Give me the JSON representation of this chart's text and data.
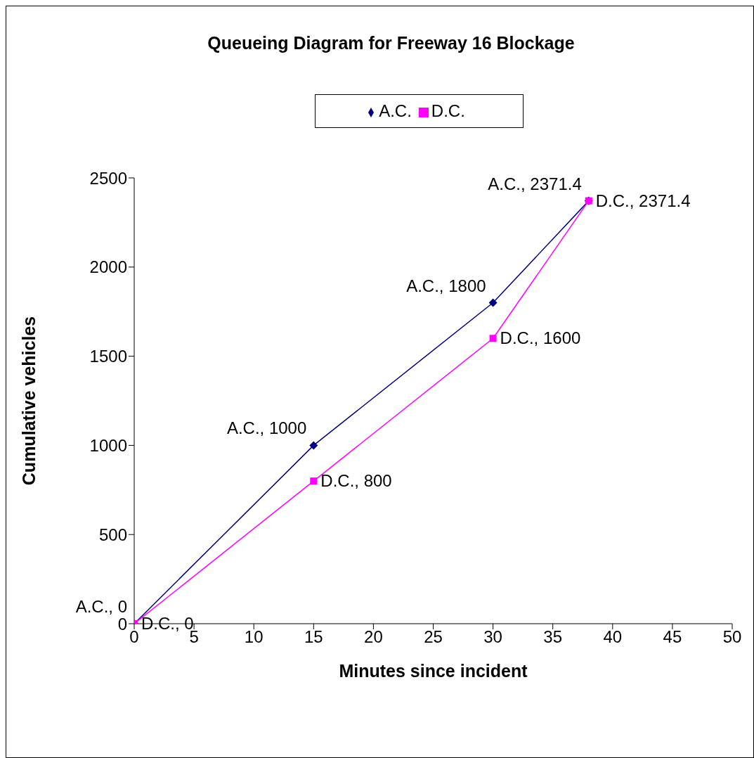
{
  "chart_data": {
    "type": "line",
    "title": "Queueing Diagram for Freeway 16 Blockage",
    "xlabel": "Minutes since incident",
    "ylabel": "Cumulative vehicles",
    "x": [
      0,
      15,
      30,
      38
    ],
    "series": [
      {
        "name": "A.C.",
        "color": "#000080",
        "marker": "diamond",
        "values": [
          0,
          1000,
          1800,
          2371.4
        ],
        "value_labels": [
          "A.C., 0",
          "A.C., 1000",
          "A.C., 1800",
          "A.C., 2371.4"
        ]
      },
      {
        "name": "D.C.",
        "color": "#ff00ff",
        "marker": "square",
        "values": [
          0,
          800,
          1600,
          2371.4
        ],
        "value_labels": [
          "D.C., 0",
          "D.C., 800",
          "D.C., 1600",
          "D.C., 2371.4"
        ]
      }
    ],
    "xlim": [
      0,
      50
    ],
    "xticks": [
      0,
      5,
      10,
      15,
      20,
      25,
      30,
      35,
      40,
      45,
      50
    ],
    "ylim": [
      0,
      2500
    ],
    "yticks": [
      0,
      500,
      1000,
      1500,
      2000,
      2500
    ],
    "grid": false,
    "legend": "top",
    "line_style": "solid"
  }
}
